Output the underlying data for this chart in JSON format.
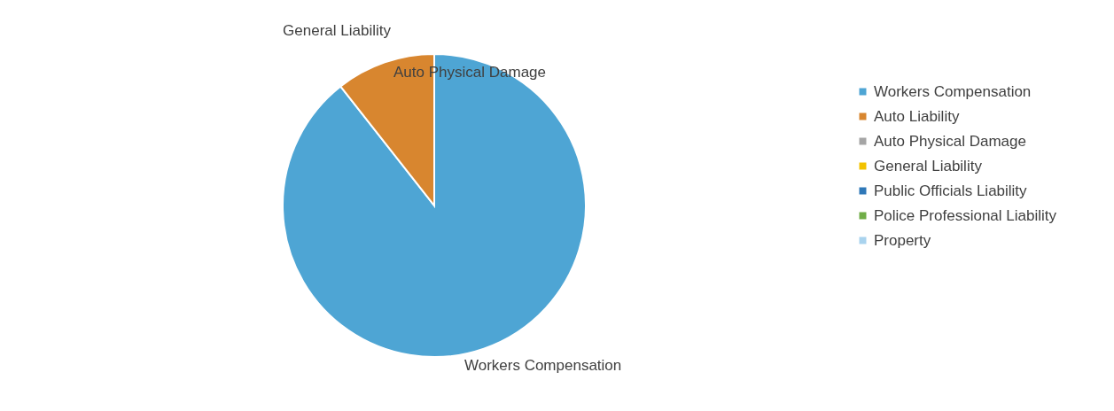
{
  "chart_data": {
    "type": "pie",
    "categories": [
      "Workers Compensation",
      "Auto Liability",
      "Auto Physical Damage",
      "General Liability",
      "Public Officials Liability",
      "Police Professional Liability",
      "Property"
    ],
    "values": [
      89.4,
      10.6,
      0,
      0,
      0,
      0,
      0
    ],
    "colors": [
      "#4ea5d4",
      "#d8862f",
      "#a5a5a5",
      "#f2c200",
      "#2f78b8",
      "#70ad47",
      "#a9d3ee"
    ],
    "value_labels": [
      "Workers Compensation",
      null,
      "Auto Physical Damage",
      "General Liability",
      null,
      null,
      null
    ],
    "legend": "right"
  }
}
